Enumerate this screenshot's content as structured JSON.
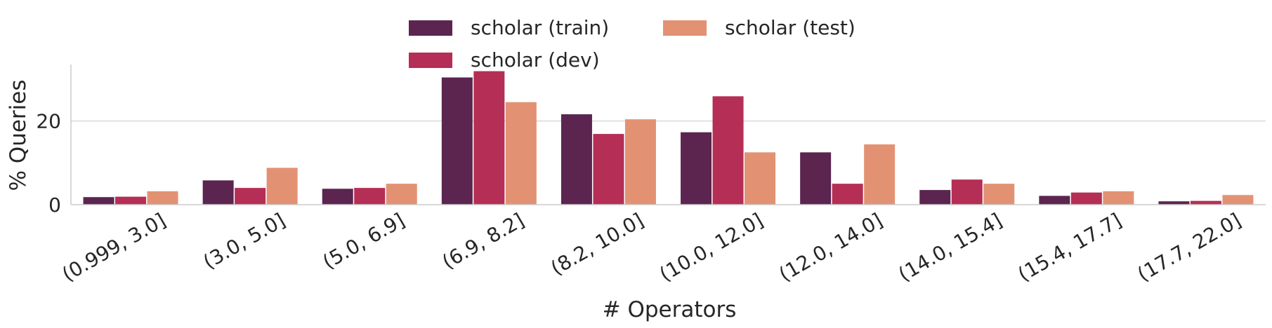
{
  "chart_data": {
    "type": "bar",
    "xlabel": "# Operators",
    "ylabel": "% Queries",
    "ylim": [
      0,
      33.5
    ],
    "yticks": [
      0,
      20
    ],
    "grid": "horizontal",
    "legend_position": "top-center",
    "categories": [
      "(0.999, 3.0]",
      "(3.0, 5.0]",
      "(5.0, 6.9]",
      "(6.9, 8.2]",
      "(8.2, 10.0]",
      "(10.0, 12.0]",
      "(12.0, 14.0]",
      "(14.0, 15.4]",
      "(15.4, 17.7]",
      "(17.7, 22.0]"
    ],
    "series": [
      {
        "name": "scholar (train)",
        "color": "#5b2550",
        "values": [
          1.8,
          5.8,
          3.8,
          30.4,
          21.6,
          17.3,
          12.5,
          3.5,
          2.1,
          0.8
        ]
      },
      {
        "name": "scholar (dev)",
        "color": "#b52e55",
        "values": [
          1.9,
          4.0,
          4.0,
          31.9,
          16.9,
          25.9,
          5.0,
          6.0,
          2.9,
          0.9
        ]
      },
      {
        "name": "scholar (test)",
        "color": "#e29273",
        "values": [
          3.2,
          8.8,
          5.0,
          24.5,
          20.4,
          12.5,
          14.4,
          5.0,
          3.2,
          2.3
        ]
      }
    ]
  }
}
